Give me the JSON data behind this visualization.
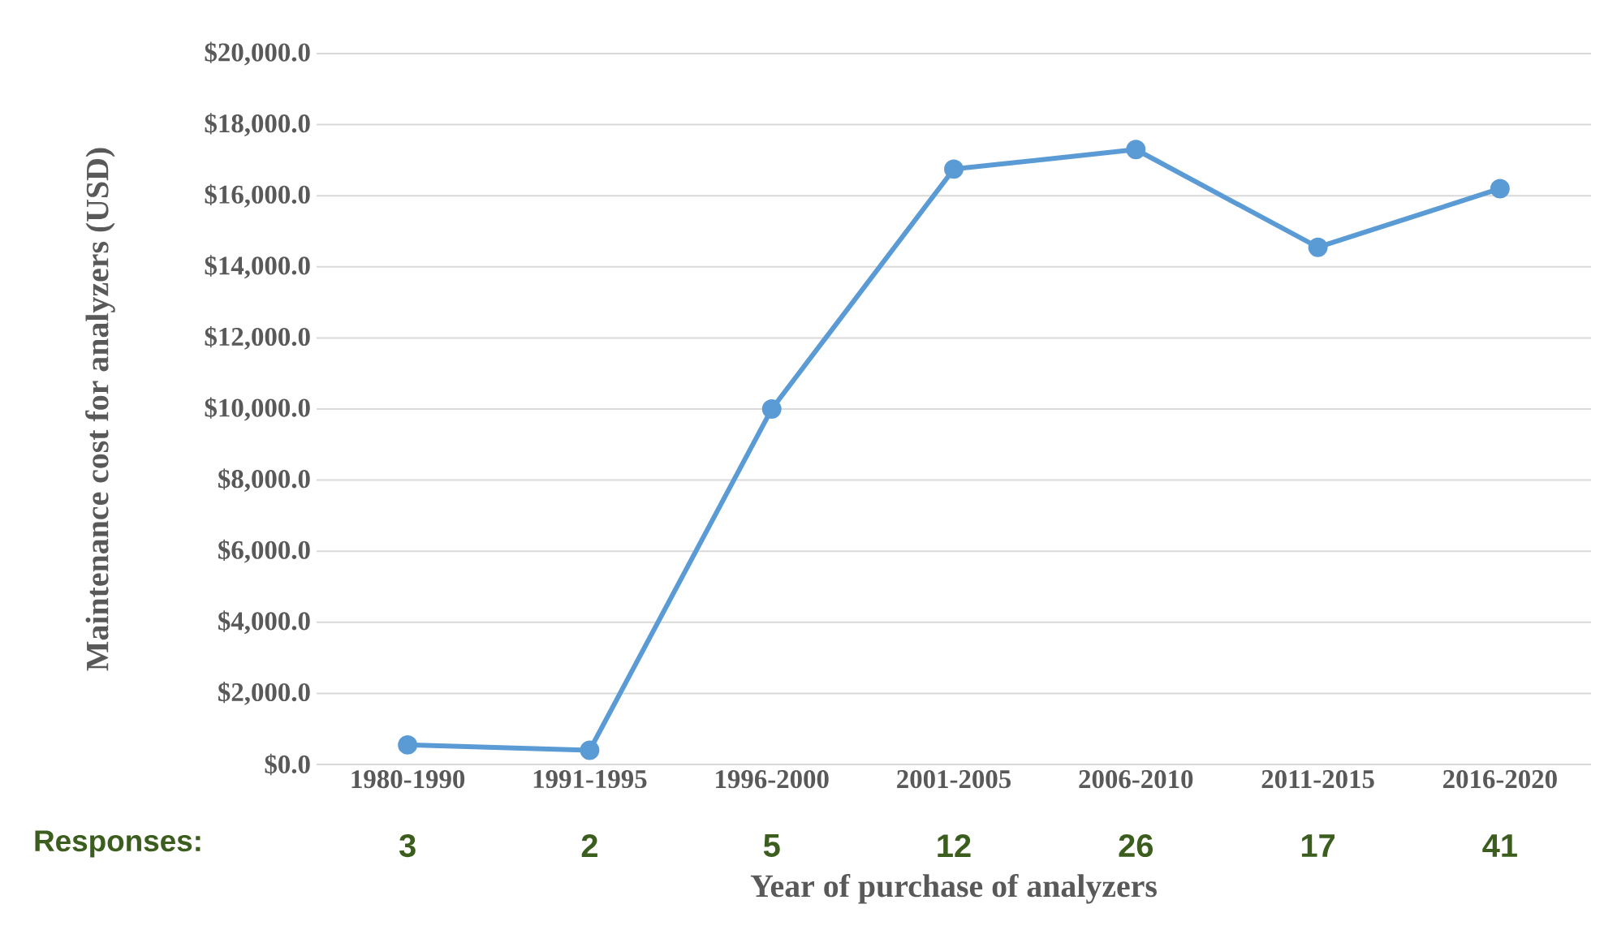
{
  "chart_data": {
    "type": "line",
    "xlabel": "Year of purchase of analyzers",
    "ylabel": "Maintenance cost for analyzers (USD)",
    "categories": [
      "1980-1990",
      "1991-1995",
      "1996-2000",
      "2001-2005",
      "2006-2010",
      "2011-2015",
      "2016-2020"
    ],
    "series": [
      {
        "color": "#5b9bd5",
        "values": [
          550,
          400,
          10000,
          16750,
          17300,
          14550,
          16200
        ]
      }
    ],
    "ylim": [
      0,
      20000
    ],
    "yticks": [
      {
        "value": 0,
        "label": "$0.0"
      },
      {
        "value": 2000,
        "label": "$2,000.0"
      },
      {
        "value": 4000,
        "label": "$4,000.0"
      },
      {
        "value": 6000,
        "label": "$6,000.0"
      },
      {
        "value": 8000,
        "label": "$8,000.0"
      },
      {
        "value": 10000,
        "label": "$10,000.0"
      },
      {
        "value": 12000,
        "label": "$12,000.0"
      },
      {
        "value": 14000,
        "label": "$14,000.0"
      },
      {
        "value": 16000,
        "label": "$16,000.0"
      },
      {
        "value": 18000,
        "label": "$18,000.0"
      },
      {
        "value": 20000,
        "label": "$20,000.0"
      }
    ],
    "annotations": [
      "Responses:",
      "3",
      "2",
      "5",
      "12",
      "26",
      "17",
      "41"
    ],
    "grid": "y",
    "marker": "circle",
    "line_style": "solid"
  }
}
